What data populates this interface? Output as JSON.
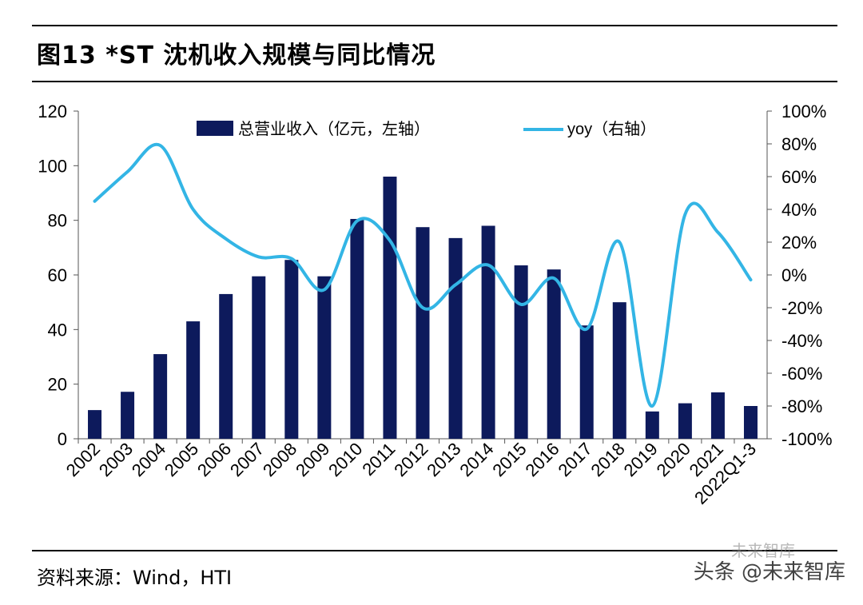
{
  "header": {
    "title": "图13 *ST 沈机收入规模与同比情况"
  },
  "footer": {
    "source": "资料来源：Wind，HTI",
    "watermark_main": "头条 @未来智库",
    "watermark_sub": "未来智库"
  },
  "chart_data": {
    "type": "bar",
    "categories": [
      "2002",
      "2003",
      "2004",
      "2005",
      "2006",
      "2007",
      "2008",
      "2009",
      "2010",
      "2011",
      "2012",
      "2013",
      "2014",
      "2015",
      "2016",
      "2017",
      "2018",
      "2019",
      "2020",
      "2021",
      "2022Q1-3"
    ],
    "series": [
      {
        "name": "总营业收入（亿元，左轴）",
        "type": "bar",
        "axis": "left",
        "color": "#0d1a5c",
        "values": [
          10.5,
          17.2,
          31,
          43,
          53,
          59.5,
          65.5,
          59.5,
          80.5,
          96,
          77.5,
          73.5,
          78,
          63.5,
          62,
          41.5,
          50,
          10,
          13,
          17,
          12
        ]
      },
      {
        "name": "yoy（右轴）",
        "type": "line",
        "axis": "right",
        "color": "#33b5e5",
        "values": [
          45,
          63,
          79,
          40,
          22,
          11,
          10,
          -9,
          33,
          21,
          -20,
          -6,
          6,
          -18,
          -2,
          -33,
          20,
          -80,
          37,
          26,
          -3
        ]
      }
    ],
    "left_axis": {
      "min": 0,
      "max": 120,
      "ticks": [
        0,
        20,
        40,
        60,
        80,
        100,
        120
      ]
    },
    "right_axis": {
      "min": -100,
      "max": 100,
      "ticks": [
        "-100%",
        "-80%",
        "-60%",
        "-40%",
        "-20%",
        "0%",
        "20%",
        "40%",
        "60%",
        "80%",
        "100%"
      ]
    },
    "legend_position": "top",
    "grid": false
  }
}
